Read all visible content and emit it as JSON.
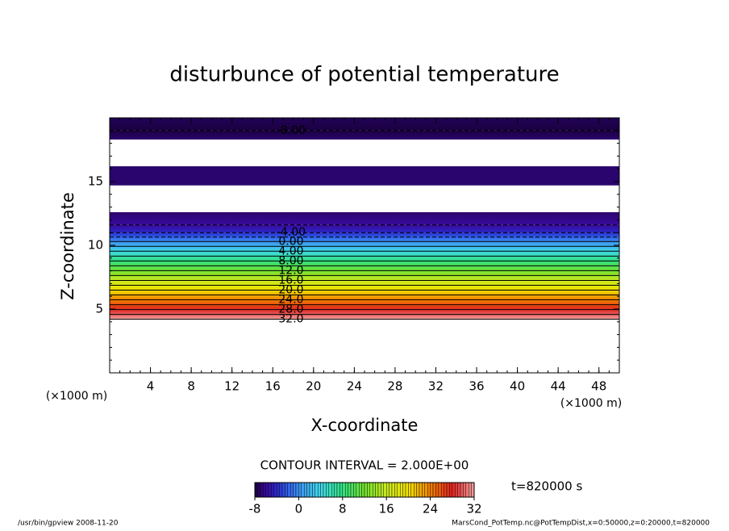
{
  "chart_data": {
    "type": "contour",
    "title": "disturbunce of potential temperature",
    "xlabel": "X-coordinate",
    "ylabel": "Z-coordinate",
    "x_unit": "(×1000 m)",
    "xlim": [
      0,
      50
    ],
    "ylim": [
      0,
      20
    ],
    "xticks": [
      4,
      8,
      12,
      16,
      20,
      24,
      28,
      32,
      36,
      40,
      44,
      48
    ],
    "yticks": [
      5,
      10,
      15
    ],
    "profile": {
      "z": [
        4.2,
        10.3,
        11.0,
        11.6,
        12.6,
        13.6,
        14.7,
        16.2,
        17.2,
        18.3,
        19.0,
        20.0
      ],
      "values": [
        32,
        0,
        -4,
        -6,
        -7,
        null,
        -7,
        -7,
        null,
        -7,
        -8,
        -7.5
      ]
    },
    "contour_levels": [
      -8,
      -6,
      -4,
      -2,
      0,
      2,
      4,
      6,
      8,
      10,
      12,
      14,
      16,
      18,
      20,
      22,
      24,
      26,
      28,
      30,
      32
    ],
    "contour_labels": [
      {
        "value": -8,
        "label": "-8.00"
      },
      {
        "value": -4,
        "label": "-4.00"
      },
      {
        "value": 0,
        "label": "0.00"
      },
      {
        "value": 4,
        "label": "4.00"
      },
      {
        "value": 8,
        "label": "8.00"
      },
      {
        "value": 12,
        "label": "12.0"
      },
      {
        "value": 16,
        "label": "16.0"
      },
      {
        "value": 20,
        "label": "20.0"
      },
      {
        "value": 24,
        "label": "24.0"
      },
      {
        "value": 28,
        "label": "28.0"
      },
      {
        "value": 32,
        "label": "32.0"
      }
    ],
    "contour_interval_text": "CONTOUR INTERVAL = 2.000E+00",
    "colormap_values": [
      -8,
      -6,
      -4,
      -2,
      0,
      4,
      8,
      12,
      16,
      20,
      24,
      28,
      32
    ],
    "colormap_colors": [
      "#1a0040",
      "#3a0a9a",
      "#2a28c8",
      "#2f5fe8",
      "#3c90f0",
      "#40d8e8",
      "#30e080",
      "#70e030",
      "#c8e820",
      "#f0e000",
      "#f08000",
      "#e02020",
      "#f0a0a0"
    ],
    "clim": [
      -8,
      32
    ],
    "colorbar_ticks": [
      -8,
      0,
      8,
      16,
      24,
      32
    ],
    "time_label": "t=820000 s",
    "footer_left": "/usr/bin/gpview  2008-11-20",
    "footer_right": "MarsCond_PotTemp.nc@PotTempDist,x=0:50000,z=0:20000,t=820000"
  }
}
